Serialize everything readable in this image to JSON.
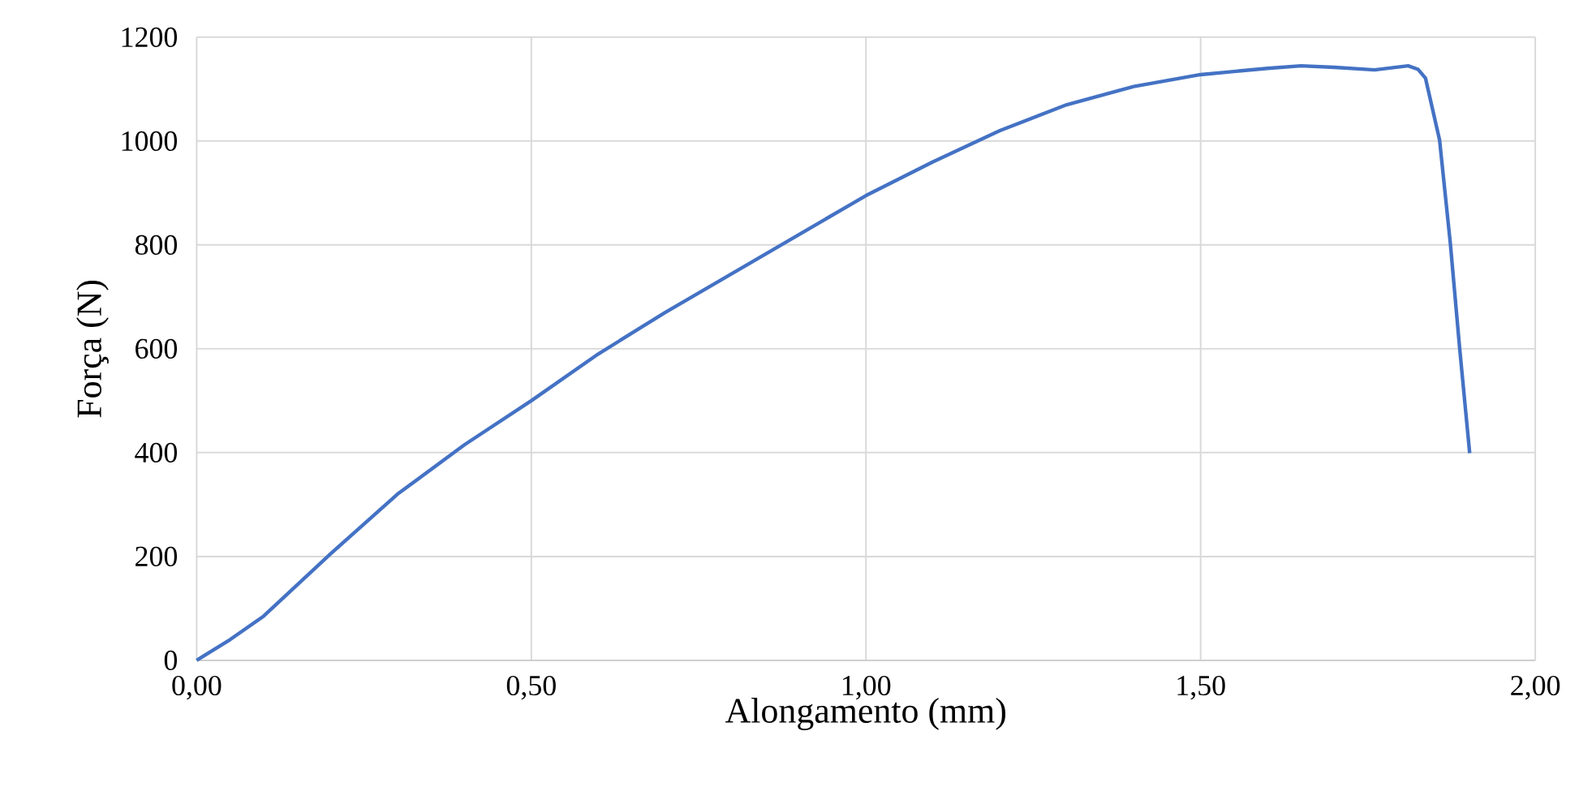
{
  "chart_data": {
    "type": "line",
    "xlabel": "Alongamento (mm)",
    "ylabel": "Força (N)",
    "xlim": [
      0,
      2
    ],
    "ylim": [
      0,
      1200
    ],
    "xticks": [
      {
        "value": 0,
        "label": "0,00"
      },
      {
        "value": 0.5,
        "label": "0,50"
      },
      {
        "value": 1,
        "label": "1,00"
      },
      {
        "value": 1.5,
        "label": "1,50"
      },
      {
        "value": 2,
        "label": "2,00"
      }
    ],
    "yticks": [
      0,
      200,
      400,
      600,
      800,
      1000,
      1200
    ],
    "grid": true,
    "marker": "none",
    "line_style": "solid",
    "series": [
      {
        "color": "#4472c4",
        "x": [
          0,
          0.05,
          0.1,
          0.15,
          0.2,
          0.3,
          0.4,
          0.5,
          0.6,
          0.7,
          0.8,
          0.9,
          1.0,
          1.1,
          1.2,
          1.3,
          1.4,
          1.5,
          1.6,
          1.65,
          1.7,
          1.76,
          1.81,
          1.825,
          1.836,
          1.857,
          1.873,
          1.887,
          1.902
        ],
        "values": [
          0,
          40,
          85,
          145,
          205,
          320,
          415,
          500,
          590,
          670,
          745,
          820,
          895,
          960,
          1020,
          1070,
          1105,
          1128,
          1140,
          1145,
          1142,
          1137,
          1145,
          1138,
          1121,
          1002,
          804,
          601,
          399
        ]
      }
    ]
  }
}
